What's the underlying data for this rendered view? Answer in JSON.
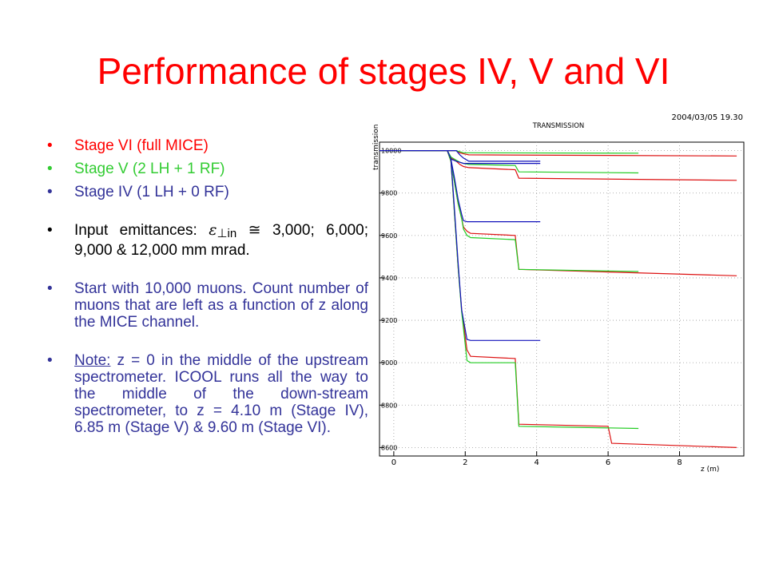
{
  "slide": {
    "title": "Performance of stages IV, V and VI"
  },
  "bullets": {
    "stage6": "Stage VI (full MICE)",
    "stage5": "Stage V (2 LH + 1 RF)",
    "stage4": "Stage IV (1 LH + 0 RF)",
    "emit_pre": "Input emittances:",
    "emit_eps": "ε",
    "emit_sub": "⊥in",
    "emit_post": "≅ 3,000; 6,000; 9,000 & 12,000 mm mrad.",
    "start": "Start with 10,000 muons. Count number of muons that are left as a function of z along the MICE channel.",
    "note_label": "Note:",
    "note_text": "z = 0 in the middle of the upstream spectrometer. ICOOL runs all the way to the middle of the down-stream spectrometer, to z = 4.10 m (Stage IV), 6.85 m (Stage V) & 9.60 m (Stage VI)."
  },
  "colors": {
    "title": "#ff0000",
    "stage6": "#ff0000",
    "stage5": "#33cc33",
    "stage4": "#333399"
  },
  "chart_data": {
    "type": "line",
    "header": "TRANSMISSION",
    "timestamp": "2004/03/05   19.30",
    "ylabel": "transmission",
    "xlabel": "z (m)",
    "xlim": [
      -0.4,
      9.8
    ],
    "ylim": [
      8560,
      10040
    ],
    "xticks": [
      "0",
      "2",
      "4",
      "6",
      "8"
    ],
    "yticks": [
      "10000",
      "9800",
      "9600",
      "9400",
      "9200",
      "9000",
      "8800",
      "8600"
    ],
    "grid": true,
    "series": [
      {
        "stage": "VI",
        "color": "#dd1111",
        "x": [
          -0.4,
          1.75,
          1.85,
          1.95,
          2.1,
          9.6
        ],
        "y": [
          10000,
          10000,
          9990,
          9985,
          9980,
          9975
        ]
      },
      {
        "stage": "V",
        "color": "#22cc22",
        "x": [
          -0.4,
          1.75,
          1.85,
          1.95,
          2.1,
          6.85
        ],
        "y": [
          10000,
          10000,
          9995,
          9990,
          9990,
          9988
        ]
      },
      {
        "stage": "IV",
        "color": "#1111bb",
        "x": [
          -0.4,
          1.75,
          1.85,
          1.95,
          2.1,
          4.1
        ],
        "y": [
          10000,
          10000,
          9980,
          9965,
          9950,
          9950
        ]
      },
      {
        "stage": "VI",
        "color": "#dd1111",
        "x": [
          -0.4,
          1.5,
          1.6,
          1.75,
          1.85,
          1.95,
          2.1,
          3.4,
          3.5,
          9.6
        ],
        "y": [
          10000,
          10000,
          9965,
          9950,
          9935,
          9925,
          9920,
          9910,
          9870,
          9860
        ]
      },
      {
        "stage": "V",
        "color": "#22cc22",
        "x": [
          -0.4,
          1.5,
          1.6,
          1.75,
          1.85,
          1.95,
          2.1,
          3.4,
          3.5,
          6.85
        ],
        "y": [
          10000,
          10000,
          9970,
          9955,
          9945,
          9940,
          9935,
          9930,
          9900,
          9895
        ]
      },
      {
        "stage": "IV",
        "color": "#1111bb",
        "x": [
          -0.4,
          1.5,
          1.6,
          1.75,
          1.85,
          1.95,
          2.1,
          4.1
        ],
        "y": [
          10000,
          10000,
          9960,
          9950,
          9945,
          9940,
          9940,
          9940
        ]
      },
      {
        "stage": "VI",
        "color": "#dd1111",
        "x": [
          -0.4,
          1.5,
          1.6,
          1.7,
          1.8,
          1.9,
          1.95,
          2.05,
          2.15,
          3.4,
          3.5,
          9.6
        ],
        "y": [
          10000,
          10000,
          9950,
          9850,
          9750,
          9680,
          9640,
          9620,
          9610,
          9600,
          9440,
          9410
        ]
      },
      {
        "stage": "V",
        "color": "#22cc22",
        "x": [
          -0.4,
          1.5,
          1.6,
          1.7,
          1.8,
          1.9,
          1.95,
          2.05,
          2.15,
          3.4,
          3.5,
          6.85
        ],
        "y": [
          10000,
          10000,
          9950,
          9850,
          9750,
          9680,
          9630,
          9600,
          9590,
          9580,
          9440,
          9430
        ]
      },
      {
        "stage": "IV",
        "color": "#1111bb",
        "x": [
          -0.4,
          1.5,
          1.6,
          1.7,
          1.8,
          1.9,
          1.95,
          2.05,
          2.15,
          4.1
        ],
        "y": [
          10000,
          10000,
          9960,
          9870,
          9770,
          9700,
          9670,
          9665,
          9665,
          9665
        ]
      },
      {
        "stage": "VI",
        "color": "#dd1111",
        "x": [
          -0.4,
          1.5,
          1.6,
          1.7,
          1.8,
          1.9,
          2.05,
          2.15,
          3.4,
          3.5,
          6.0,
          6.1,
          9.6
        ],
        "y": [
          10000,
          10000,
          9950,
          9700,
          9450,
          9250,
          9060,
          9030,
          9020,
          8710,
          8700,
          8620,
          8600
        ]
      },
      {
        "stage": "V",
        "color": "#22cc22",
        "x": [
          -0.4,
          1.5,
          1.6,
          1.7,
          1.8,
          1.9,
          2.05,
          2.15,
          3.4,
          3.5,
          6.85
        ],
        "y": [
          10000,
          10000,
          9950,
          9700,
          9450,
          9240,
          9010,
          9000,
          9000,
          8700,
          8690
        ]
      },
      {
        "stage": "IV",
        "color": "#1111bb",
        "x": [
          -0.4,
          1.5,
          1.6,
          1.7,
          1.8,
          1.9,
          2.05,
          2.15,
          4.1
        ],
        "y": [
          10000,
          10000,
          9960,
          9720,
          9470,
          9250,
          9110,
          9105,
          9105
        ]
      }
    ]
  }
}
